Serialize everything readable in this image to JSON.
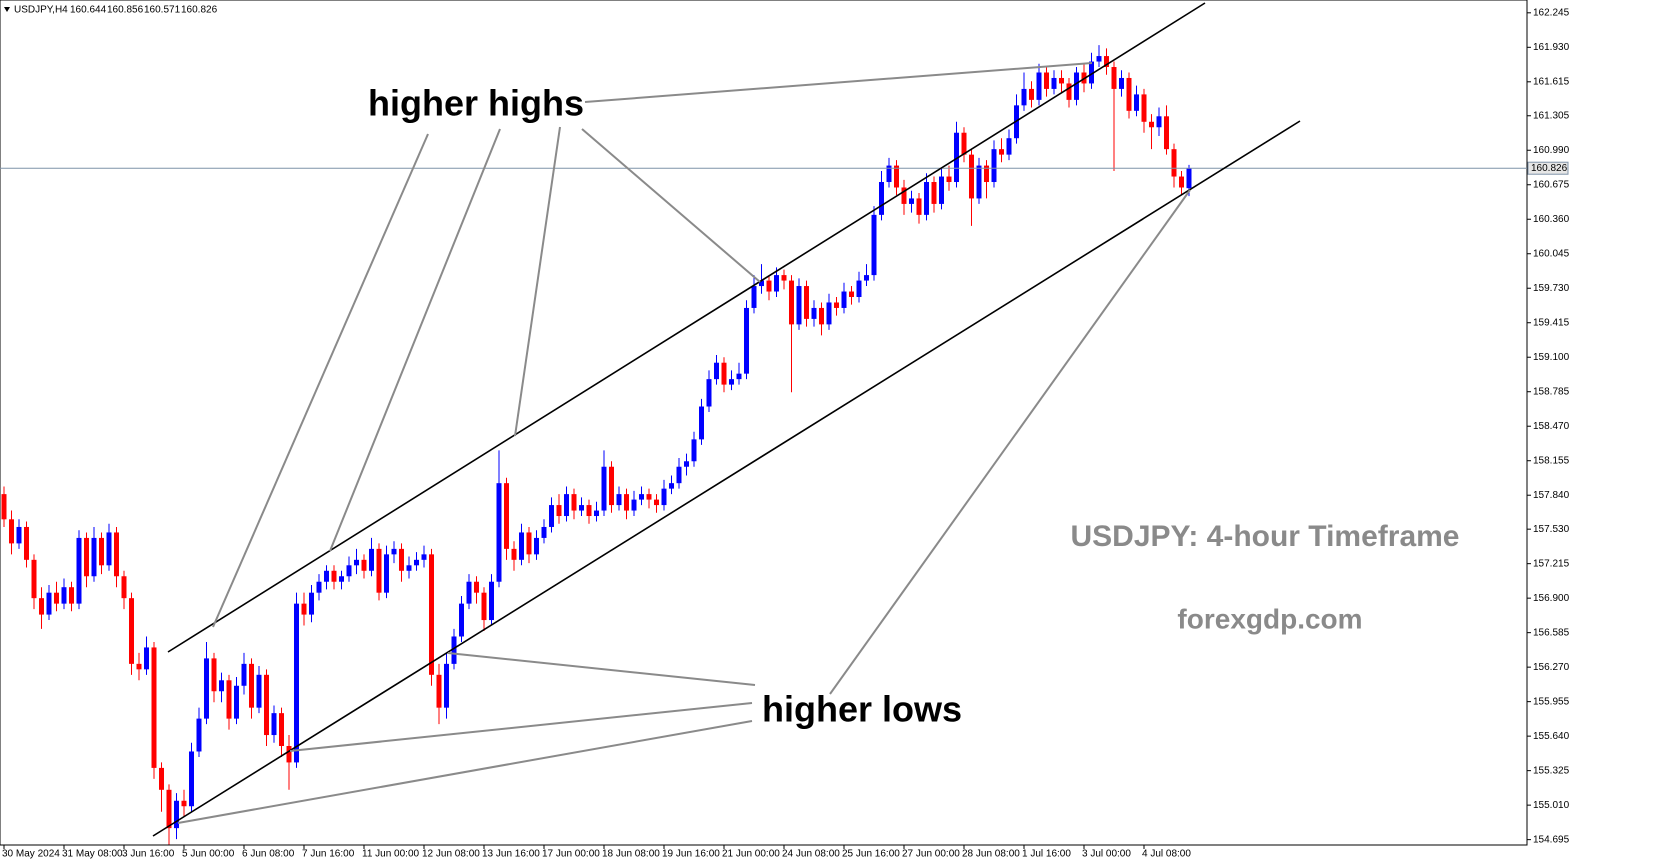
{
  "chart_data": {
    "type": "candlestick",
    "title": "USDJPY,H4",
    "annotations": [
      "higher highs",
      "higher lows",
      "USDJPY: 4-hour Timeframe",
      "forexgdp.com"
    ],
    "up_color": "#0000ff",
    "down_color": "#ff0000",
    "ylim": [
      154.646,
      162.362
    ],
    "yticks": [
      162.245,
      {
        "value": 161.93,
        "label": "161.930"
      },
      161.615,
      161.305,
      {
        "value": 160.99,
        "label": "160.990"
      },
      160.675,
      {
        "value": 160.36,
        "label": "160.360"
      },
      160.045,
      {
        "value": 159.73,
        "label": "159.730"
      },
      159.415,
      {
        "value": 159.1,
        "label": "159.100"
      },
      158.785,
      {
        "value": 158.47,
        "label": "158.470"
      },
      158.155,
      {
        "value": 157.84,
        "label": "157.840"
      },
      {
        "value": 157.53,
        "label": "157.530"
      },
      157.215,
      {
        "value": 156.9,
        "label": "156.900"
      },
      156.585,
      {
        "value": 156.27,
        "label": "156.270"
      },
      155.955,
      {
        "value": 155.64,
        "label": "155.640"
      },
      155.325,
      {
        "value": 155.01,
        "label": "155.010"
      },
      154.695
    ],
    "categories": [
      "30 May 2024",
      null,
      null,
      null,
      null,
      null,
      null,
      null,
      "31 May 08:00",
      null,
      null,
      null,
      null,
      null,
      null,
      null,
      "3 Jun 16:00",
      null,
      null,
      null,
      null,
      null,
      null,
      null,
      "5 Jun 00:00",
      null,
      null,
      null,
      null,
      null,
      null,
      null,
      "6 Jun 08:00",
      null,
      null,
      null,
      null,
      null,
      null,
      null,
      "7 Jun 16:00",
      null,
      null,
      null,
      null,
      null,
      null,
      null,
      "11 Jun 00:00",
      null,
      null,
      null,
      null,
      null,
      null,
      null,
      "12 Jun 08:00",
      null,
      null,
      null,
      null,
      null,
      null,
      null,
      "13 Jun 16:00",
      null,
      null,
      null,
      null,
      null,
      null,
      null,
      "17 Jun 00:00",
      null,
      null,
      null,
      null,
      null,
      null,
      null,
      "18 Jun 08:00",
      null,
      null,
      null,
      null,
      null,
      null,
      null,
      "19 Jun 16:00",
      null,
      null,
      null,
      null,
      null,
      null,
      null,
      "21 Jun 00:00",
      null,
      null,
      null,
      null,
      null,
      null,
      null,
      "24 Jun 08:00",
      null,
      null,
      null,
      null,
      null,
      null,
      null,
      "25 Jun 16:00",
      null,
      null,
      null,
      null,
      null,
      null,
      null,
      "27 Jun 00:00",
      null,
      null,
      null,
      null,
      null,
      null,
      null,
      "28 Jun 08:00",
      null,
      null,
      null,
      null,
      null,
      null,
      null,
      "1 Jul 16:00",
      null,
      null,
      null,
      null,
      null,
      null,
      null,
      "3 Jul 00:00",
      null,
      null,
      null,
      null,
      null,
      null,
      null,
      "4 Jul 08:00",
      null,
      null,
      null,
      null,
      null,
      null
    ],
    "open": [
      157.85,
      157.62,
      157.4,
      157.55,
      157.25,
      156.9,
      156.75,
      156.95,
      156.85,
      157.0,
      156.85,
      157.45,
      157.1,
      157.45,
      157.2,
      157.5,
      157.1,
      156.9,
      156.3,
      156.25,
      156.45,
      155.35,
      155.15,
      154.8,
      155.05,
      155.0,
      155.5,
      155.8,
      156.35,
      156.05,
      156.15,
      155.8,
      156.1,
      156.3,
      155.9,
      156.2,
      155.65,
      155.85,
      155.55,
      155.4,
      156.85,
      156.75,
      156.95,
      157.05,
      157.15,
      157.05,
      157.1,
      157.2,
      157.25,
      157.15,
      157.35,
      156.95,
      157.3,
      157.35,
      157.15,
      157.2,
      157.25,
      157.3,
      156.2,
      155.9,
      156.3,
      156.55,
      156.85,
      157.05,
      156.95,
      156.7,
      157.05,
      157.95,
      157.35,
      157.25,
      157.5,
      157.3,
      157.45,
      157.55,
      157.75,
      157.65,
      157.85,
      157.7,
      157.75,
      157.65,
      157.7,
      158.1,
      157.75,
      157.85,
      157.7,
      157.8,
      157.85,
      157.8,
      157.75,
      157.9,
      157.95,
      158.1,
      158.15,
      158.35,
      158.65,
      158.9,
      159.05,
      158.85,
      158.9,
      158.95,
      159.55,
      159.75,
      159.8,
      159.7,
      159.85,
      159.8,
      159.4,
      159.75,
      159.45,
      159.55,
      159.4,
      159.6,
      159.55,
      159.7,
      159.65,
      159.8,
      159.85,
      160.4,
      160.7,
      160.85,
      160.65,
      160.5,
      160.55,
      160.4,
      160.7,
      160.5,
      160.75,
      160.7,
      161.15,
      160.95,
      160.55,
      160.85,
      160.7,
      161.0,
      160.95,
      161.1,
      161.4,
      161.55,
      161.45,
      161.7,
      161.55,
      161.65,
      161.6,
      161.45,
      161.7,
      161.6,
      161.8,
      161.85,
      161.75,
      161.55,
      161.65,
      161.35,
      161.5,
      161.25,
      161.2,
      161.3,
      161.0,
      160.75,
      160.644
    ],
    "high": [
      157.92,
      157.7,
      157.62,
      157.6,
      157.3,
      157.0,
      157.02,
      157.05,
      157.08,
      157.05,
      157.52,
      157.5,
      157.55,
      157.5,
      157.58,
      157.55,
      157.15,
      156.95,
      156.4,
      156.55,
      156.5,
      155.4,
      155.2,
      155.12,
      155.15,
      155.58,
      155.9,
      156.5,
      156.4,
      156.22,
      156.2,
      156.18,
      156.4,
      156.35,
      156.28,
      156.25,
      155.92,
      155.9,
      155.65,
      156.95,
      156.95,
      157.02,
      157.12,
      157.2,
      157.2,
      157.15,
      157.28,
      157.35,
      157.3,
      157.45,
      157.4,
      157.38,
      157.42,
      157.4,
      157.28,
      157.32,
      157.38,
      157.35,
      156.3,
      156.4,
      156.62,
      156.92,
      157.12,
      157.1,
      157.0,
      157.12,
      158.25,
      158.0,
      157.42,
      157.58,
      157.55,
      157.52,
      157.62,
      157.82,
      157.85,
      157.92,
      157.9,
      157.82,
      157.8,
      157.78,
      158.25,
      158.15,
      157.92,
      157.9,
      157.88,
      157.92,
      157.9,
      157.85,
      157.98,
      158.02,
      158.18,
      158.22,
      158.42,
      158.72,
      158.98,
      159.12,
      159.1,
      158.98,
      159.05,
      159.62,
      159.85,
      159.95,
      159.85,
      159.92,
      159.9,
      159.85,
      159.82,
      159.8,
      159.62,
      159.6,
      159.68,
      159.65,
      159.78,
      159.75,
      159.88,
      159.95,
      160.48,
      160.8,
      160.92,
      160.9,
      160.72,
      160.62,
      160.6,
      160.78,
      160.75,
      160.82,
      160.85,
      161.25,
      161.2,
      161.0,
      160.92,
      160.9,
      161.08,
      161.1,
      161.18,
      161.5,
      161.7,
      161.62,
      161.78,
      161.75,
      161.72,
      161.72,
      161.65,
      161.75,
      161.78,
      161.88,
      161.95,
      161.92,
      161.8,
      161.72,
      161.7,
      161.58,
      161.55,
      161.32,
      161.38,
      161.4,
      161.05,
      160.8,
      160.856
    ],
    "low": [
      157.55,
      157.3,
      157.35,
      157.18,
      156.8,
      156.62,
      156.7,
      156.78,
      156.8,
      156.78,
      156.8,
      157.0,
      157.05,
      157.12,
      157.15,
      157.0,
      156.8,
      156.2,
      156.15,
      156.2,
      155.25,
      154.95,
      154.65,
      154.7,
      154.9,
      154.95,
      155.45,
      155.75,
      155.95,
      155.95,
      155.7,
      155.75,
      156.02,
      155.8,
      155.85,
      155.55,
      155.58,
      155.45,
      155.15,
      155.35,
      156.65,
      156.68,
      156.88,
      156.98,
      156.98,
      156.98,
      157.05,
      157.12,
      157.08,
      157.1,
      156.88,
      156.9,
      157.22,
      157.05,
      157.08,
      157.15,
      157.18,
      156.1,
      155.75,
      155.8,
      156.25,
      156.5,
      156.8,
      156.85,
      156.6,
      156.65,
      157.0,
      157.25,
      157.15,
      157.2,
      157.22,
      157.25,
      157.4,
      157.5,
      157.58,
      157.6,
      157.62,
      157.65,
      157.58,
      157.6,
      157.65,
      157.68,
      157.7,
      157.62,
      157.65,
      157.75,
      157.72,
      157.68,
      157.7,
      157.85,
      157.9,
      158.02,
      158.1,
      158.3,
      158.6,
      158.85,
      158.78,
      158.8,
      158.85,
      158.9,
      159.5,
      159.68,
      159.62,
      159.65,
      159.72,
      158.78,
      159.35,
      159.38,
      159.38,
      159.3,
      159.35,
      159.48,
      159.5,
      159.58,
      159.6,
      159.75,
      159.8,
      160.35,
      160.65,
      160.58,
      160.4,
      160.42,
      160.32,
      160.35,
      160.42,
      160.45,
      160.62,
      160.65,
      160.88,
      160.3,
      160.5,
      160.55,
      160.65,
      160.88,
      160.9,
      161.05,
      161.35,
      161.38,
      161.4,
      161.48,
      161.5,
      161.52,
      161.38,
      161.4,
      161.52,
      161.55,
      161.75,
      161.68,
      160.8,
      161.48,
      161.28,
      161.3,
      161.15,
      161.0,
      161.12,
      160.95,
      160.65,
      160.58,
      160.571
    ],
    "close": [
      157.62,
      157.4,
      157.55,
      157.25,
      156.9,
      156.75,
      156.95,
      156.85,
      157.0,
      156.85,
      157.45,
      157.1,
      157.45,
      157.2,
      157.5,
      157.1,
      156.9,
      156.3,
      156.25,
      156.45,
      155.35,
      155.15,
      154.8,
      155.05,
      155.0,
      155.5,
      155.8,
      156.35,
      156.05,
      156.15,
      155.8,
      156.1,
      156.3,
      155.9,
      156.2,
      155.65,
      155.85,
      155.55,
      155.4,
      156.85,
      156.75,
      156.95,
      157.05,
      157.15,
      157.05,
      157.1,
      157.2,
      157.25,
      157.15,
      157.35,
      156.95,
      157.3,
      157.35,
      157.15,
      157.2,
      157.25,
      157.3,
      156.2,
      155.9,
      156.3,
      156.55,
      156.85,
      157.05,
      156.95,
      156.7,
      157.05,
      157.95,
      157.35,
      157.25,
      157.5,
      157.3,
      157.45,
      157.55,
      157.75,
      157.65,
      157.85,
      157.7,
      157.75,
      157.65,
      157.7,
      158.1,
      157.75,
      157.85,
      157.7,
      157.8,
      157.85,
      157.8,
      157.75,
      157.9,
      157.95,
      158.1,
      158.15,
      158.35,
      158.65,
      158.9,
      159.05,
      158.85,
      158.9,
      158.95,
      159.55,
      159.75,
      159.8,
      159.7,
      159.85,
      159.8,
      159.4,
      159.75,
      159.45,
      159.55,
      159.4,
      159.6,
      159.55,
      159.7,
      159.65,
      159.8,
      159.85,
      160.4,
      160.7,
      160.85,
      160.65,
      160.5,
      160.55,
      160.4,
      160.7,
      160.5,
      160.75,
      160.7,
      161.15,
      160.95,
      160.55,
      160.85,
      160.7,
      161.0,
      160.95,
      161.1,
      161.4,
      161.55,
      161.45,
      161.7,
      161.55,
      161.65,
      161.6,
      161.45,
      161.7,
      161.6,
      161.8,
      161.85,
      161.75,
      161.55,
      161.65,
      161.35,
      161.5,
      161.25,
      161.2,
      161.3,
      161.0,
      160.75,
      160.65,
      160.826
    ]
  }
}
